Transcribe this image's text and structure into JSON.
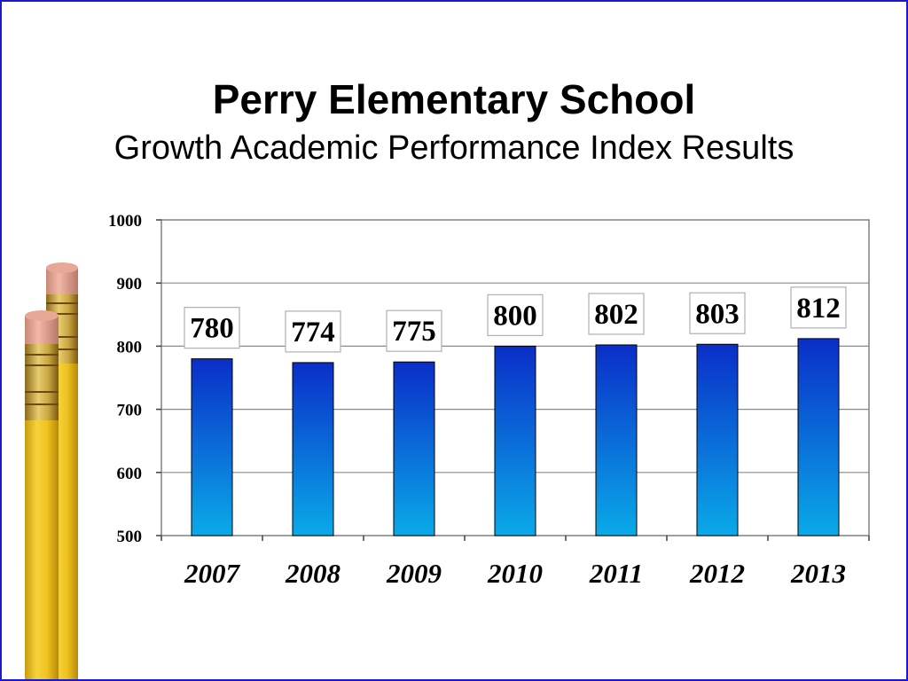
{
  "slide": {
    "title": "Perry Elementary School",
    "subtitle": "Growth Academic Performance Index Results",
    "border_color": "#1a1acc",
    "decoration_icon": "pencil-icon"
  },
  "chart_data": {
    "type": "bar",
    "categories": [
      "2007",
      "2008",
      "2009",
      "2010",
      "2011",
      "2012",
      "2013"
    ],
    "values": [
      780,
      774,
      775,
      800,
      802,
      803,
      812
    ],
    "data_labels": [
      "780",
      "774",
      "775",
      "800",
      "802",
      "803",
      "812"
    ],
    "title": "",
    "xlabel": "",
    "ylabel": "",
    "ylim": [
      500,
      1000
    ],
    "yticks": [
      "500",
      "600",
      "700",
      "800",
      "900",
      "1000"
    ],
    "ytick_values": [
      500,
      600,
      700,
      800,
      900,
      1000
    ],
    "grid": true,
    "legend": "none",
    "bar_color_top": "#0a2ec8",
    "bar_color_bottom": "#0aaae8"
  }
}
